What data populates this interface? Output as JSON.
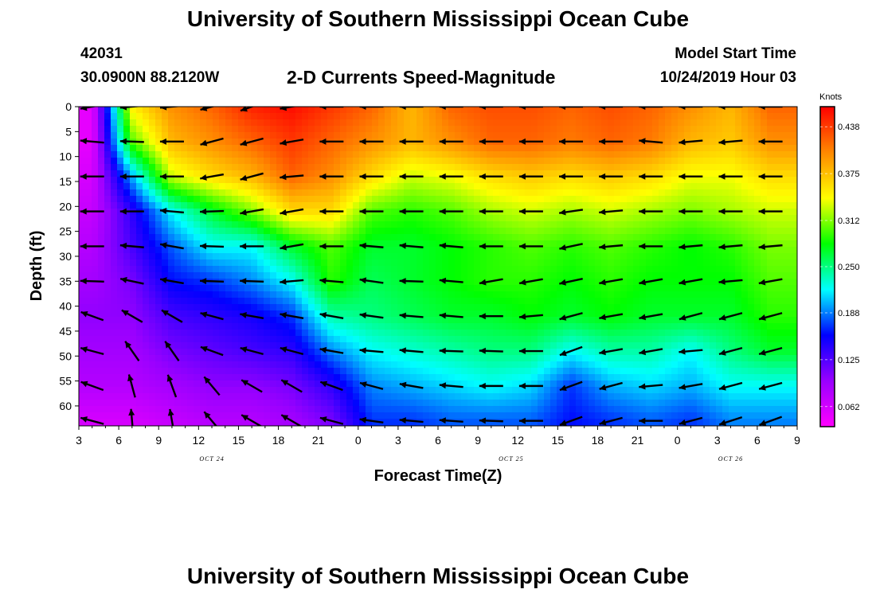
{
  "header": {
    "title": "University of Southern Mississippi Ocean Cube",
    "station_id": "42031",
    "station_coords": "30.0900N 88.2120W",
    "chart_title": "2-D Currents Speed-Magnitude",
    "model_start_label": "Model Start Time",
    "model_start_value": "10/24/2019 Hour 03"
  },
  "footer": {
    "title": "University of Southern Mississippi Ocean Cube"
  },
  "chart_data": {
    "type": "heatmap",
    "title": "2-D Currents Speed-Magnitude",
    "xlabel": "Forecast Time(Z)",
    "ylabel": "Depth (ft)",
    "x_ticks": [
      "3",
      "6",
      "9",
      "12",
      "15",
      "18",
      "21",
      "0",
      "3",
      "6",
      "9",
      "12",
      "15",
      "18",
      "21",
      "0",
      "3",
      "6",
      "9"
    ],
    "x_hours_range": [
      3,
      57
    ],
    "date_labels": [
      {
        "label": "OCT 24",
        "hour": 13
      },
      {
        "label": "OCT 25",
        "hour": 35.5
      },
      {
        "label": "OCT 26",
        "hour": 52
      }
    ],
    "y_ticks": [
      "0",
      "5",
      "10",
      "15",
      "20",
      "25",
      "30",
      "35",
      "40",
      "45",
      "50",
      "55",
      "60"
    ],
    "ylim": [
      0,
      64
    ],
    "y_inverted": true,
    "colorbar": {
      "label": "Knots",
      "ticks": [
        "0.438",
        "0.375",
        "0.312",
        "0.250",
        "0.188",
        "0.125",
        "0.062"
      ],
      "range": [
        0.035,
        0.465
      ],
      "colors": [
        "#ff00ff",
        "#9900ff",
        "#0000ff",
        "#00ffff",
        "#00ff00",
        "#ffff00",
        "#ff8800",
        "#ff0000"
      ]
    },
    "arrow_hours": [
      4,
      7,
      10,
      13,
      16,
      19,
      22,
      25,
      28,
      31,
      34,
      37,
      40,
      43,
      46,
      49,
      52,
      55
    ],
    "arrow_depths": [
      0,
      7,
      14,
      21,
      28,
      35,
      42,
      49,
      56,
      63
    ],
    "arrow_angles_deg": [
      [
        190,
        185,
        185,
        195,
        200,
        190,
        180,
        180,
        180,
        180,
        180,
        180,
        180,
        180,
        180,
        180,
        180,
        180
      ],
      [
        175,
        178,
        180,
        195,
        195,
        190,
        180,
        180,
        180,
        180,
        180,
        180,
        180,
        180,
        175,
        185,
        185,
        180
      ],
      [
        180,
        180,
        180,
        190,
        195,
        185,
        180,
        180,
        180,
        180,
        180,
        180,
        180,
        180,
        180,
        180,
        180,
        180
      ],
      [
        180,
        180,
        175,
        182,
        190,
        190,
        180,
        180,
        180,
        180,
        180,
        180,
        188,
        185,
        180,
        180,
        180,
        180
      ],
      [
        180,
        175,
        170,
        178,
        180,
        190,
        180,
        175,
        175,
        175,
        180,
        180,
        192,
        185,
        180,
        185,
        185,
        185
      ],
      [
        178,
        168,
        170,
        178,
        178,
        185,
        175,
        172,
        178,
        175,
        190,
        190,
        192,
        190,
        190,
        190,
        185,
        190
      ],
      [
        160,
        150,
        150,
        165,
        170,
        170,
        170,
        172,
        175,
        175,
        180,
        185,
        195,
        190,
        190,
        195,
        195,
        195
      ],
      [
        165,
        125,
        125,
        160,
        165,
        165,
        170,
        175,
        175,
        178,
        178,
        180,
        200,
        190,
        190,
        185,
        195,
        195
      ],
      [
        160,
        105,
        110,
        130,
        150,
        150,
        160,
        165,
        170,
        175,
        180,
        180,
        200,
        195,
        185,
        190,
        195,
        195
      ],
      [
        165,
        95,
        100,
        130,
        150,
        150,
        165,
        172,
        175,
        176,
        178,
        180,
        200,
        195,
        180,
        195,
        198,
        200
      ]
    ],
    "arrow_speed": [
      [
        0.05,
        0.35,
        0.4,
        0.42,
        0.45,
        0.46,
        0.44,
        0.42,
        0.38,
        0.42,
        0.43,
        0.43,
        0.42,
        0.43,
        0.42,
        0.4,
        0.38,
        0.42
      ],
      [
        0.05,
        0.3,
        0.38,
        0.4,
        0.42,
        0.44,
        0.42,
        0.4,
        0.38,
        0.4,
        0.42,
        0.42,
        0.41,
        0.42,
        0.41,
        0.38,
        0.37,
        0.4
      ],
      [
        0.06,
        0.2,
        0.33,
        0.36,
        0.38,
        0.42,
        0.4,
        0.36,
        0.33,
        0.34,
        0.36,
        0.37,
        0.36,
        0.37,
        0.36,
        0.34,
        0.34,
        0.36
      ],
      [
        0.07,
        0.14,
        0.22,
        0.27,
        0.31,
        0.36,
        0.36,
        0.3,
        0.29,
        0.3,
        0.32,
        0.33,
        0.32,
        0.33,
        0.32,
        0.31,
        0.32,
        0.33
      ],
      [
        0.08,
        0.13,
        0.18,
        0.22,
        0.22,
        0.27,
        0.3,
        0.27,
        0.27,
        0.28,
        0.29,
        0.3,
        0.29,
        0.3,
        0.29,
        0.28,
        0.29,
        0.31
      ],
      [
        0.09,
        0.11,
        0.16,
        0.17,
        0.19,
        0.22,
        0.29,
        0.26,
        0.27,
        0.28,
        0.29,
        0.29,
        0.28,
        0.29,
        0.28,
        0.28,
        0.28,
        0.3
      ],
      [
        0.1,
        0.1,
        0.13,
        0.14,
        0.15,
        0.17,
        0.24,
        0.25,
        0.26,
        0.27,
        0.27,
        0.28,
        0.27,
        0.28,
        0.27,
        0.27,
        0.27,
        0.29
      ],
      [
        0.09,
        0.09,
        0.11,
        0.12,
        0.13,
        0.14,
        0.19,
        0.22,
        0.23,
        0.24,
        0.25,
        0.25,
        0.22,
        0.24,
        0.24,
        0.22,
        0.25,
        0.27
      ],
      [
        0.08,
        0.08,
        0.09,
        0.1,
        0.1,
        0.11,
        0.14,
        0.19,
        0.2,
        0.21,
        0.22,
        0.21,
        0.17,
        0.2,
        0.21,
        0.2,
        0.22,
        0.22
      ],
      [
        0.06,
        0.06,
        0.07,
        0.08,
        0.08,
        0.09,
        0.11,
        0.17,
        0.17,
        0.18,
        0.18,
        0.18,
        0.16,
        0.17,
        0.18,
        0.17,
        0.19,
        0.19
      ]
    ]
  }
}
